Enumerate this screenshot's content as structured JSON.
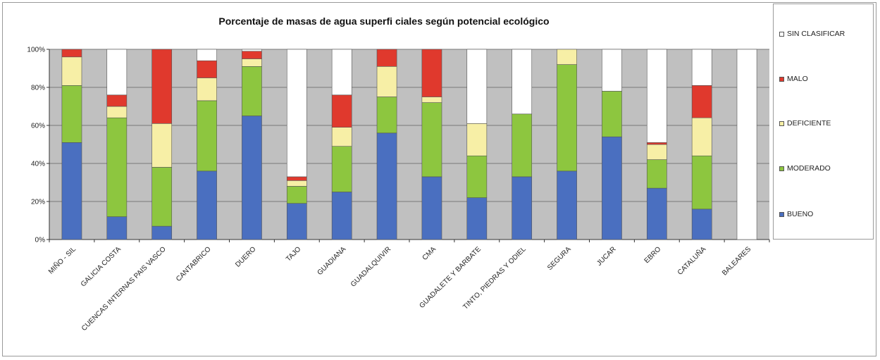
{
  "chart_data": {
    "type": "bar",
    "stacked": true,
    "title": "Porcentaje de masas de agua superfi ciales según potencial ecológico",
    "xlabel": "",
    "ylabel": "",
    "ylim": [
      0,
      100
    ],
    "yticks": [
      "0%",
      "20%",
      "40%",
      "60%",
      "80%",
      "100%"
    ],
    "grid": true,
    "legend_position": "right",
    "categories": [
      "MIÑO - SIL",
      "GALICIA COSTA",
      "CUENCAS INTERNAS PAIS VASCO",
      "CANTABRICO",
      "DUERO",
      "TAJO",
      "GUADIANA",
      "GUADALQUIVIR",
      "CMA",
      "GUADALETE Y BARBATE",
      "TINTO, PIEDRAS Y ODIEL",
      "SEGURA",
      "JUCAR",
      "EBRO",
      "CATALUÑA",
      "BALEARES"
    ],
    "series": [
      {
        "name": "BUENO",
        "color": "#4a6fc0",
        "values": [
          51,
          12,
          7,
          36,
          65,
          19,
          25,
          56,
          33,
          22,
          33,
          36,
          54,
          27,
          16,
          0
        ]
      },
      {
        "name": "MODERADO",
        "color": "#8dc63f",
        "values": [
          30,
          52,
          31,
          37,
          26,
          9,
          24,
          19,
          39,
          22,
          33,
          56,
          24,
          15,
          28,
          0
        ]
      },
      {
        "name": "DEFICIENTE",
        "color": "#f7efa6",
        "values": [
          15,
          6,
          23,
          12,
          4,
          3,
          10,
          16,
          3,
          17,
          0,
          8,
          0,
          8,
          20,
          0
        ]
      },
      {
        "name": "MALO",
        "color": "#e0392d",
        "values": [
          4,
          6,
          39,
          9,
          4,
          2,
          17,
          9,
          25,
          0,
          0,
          0,
          0,
          1,
          17,
          0
        ]
      },
      {
        "name": "SIN CLASIFICAR",
        "color": "#ffffff",
        "values": [
          0,
          24,
          0,
          6,
          1,
          67,
          24,
          0,
          0,
          39,
          34,
          0,
          22,
          49,
          19,
          100
        ]
      }
    ]
  },
  "legend": {
    "items": [
      {
        "label": "SIN CLASIFICAR",
        "color": "#ffffff"
      },
      {
        "label": "MALO",
        "color": "#e0392d"
      },
      {
        "label": "DEFICIENTE",
        "color": "#f7efa6"
      },
      {
        "label": "MODERADO",
        "color": "#8dc63f"
      },
      {
        "label": "BUENO",
        "color": "#4a6fc0"
      }
    ]
  },
  "colors": {
    "plot_background": "#c0c0c0",
    "gridline": "#777777",
    "bar_outline": "#555555"
  }
}
